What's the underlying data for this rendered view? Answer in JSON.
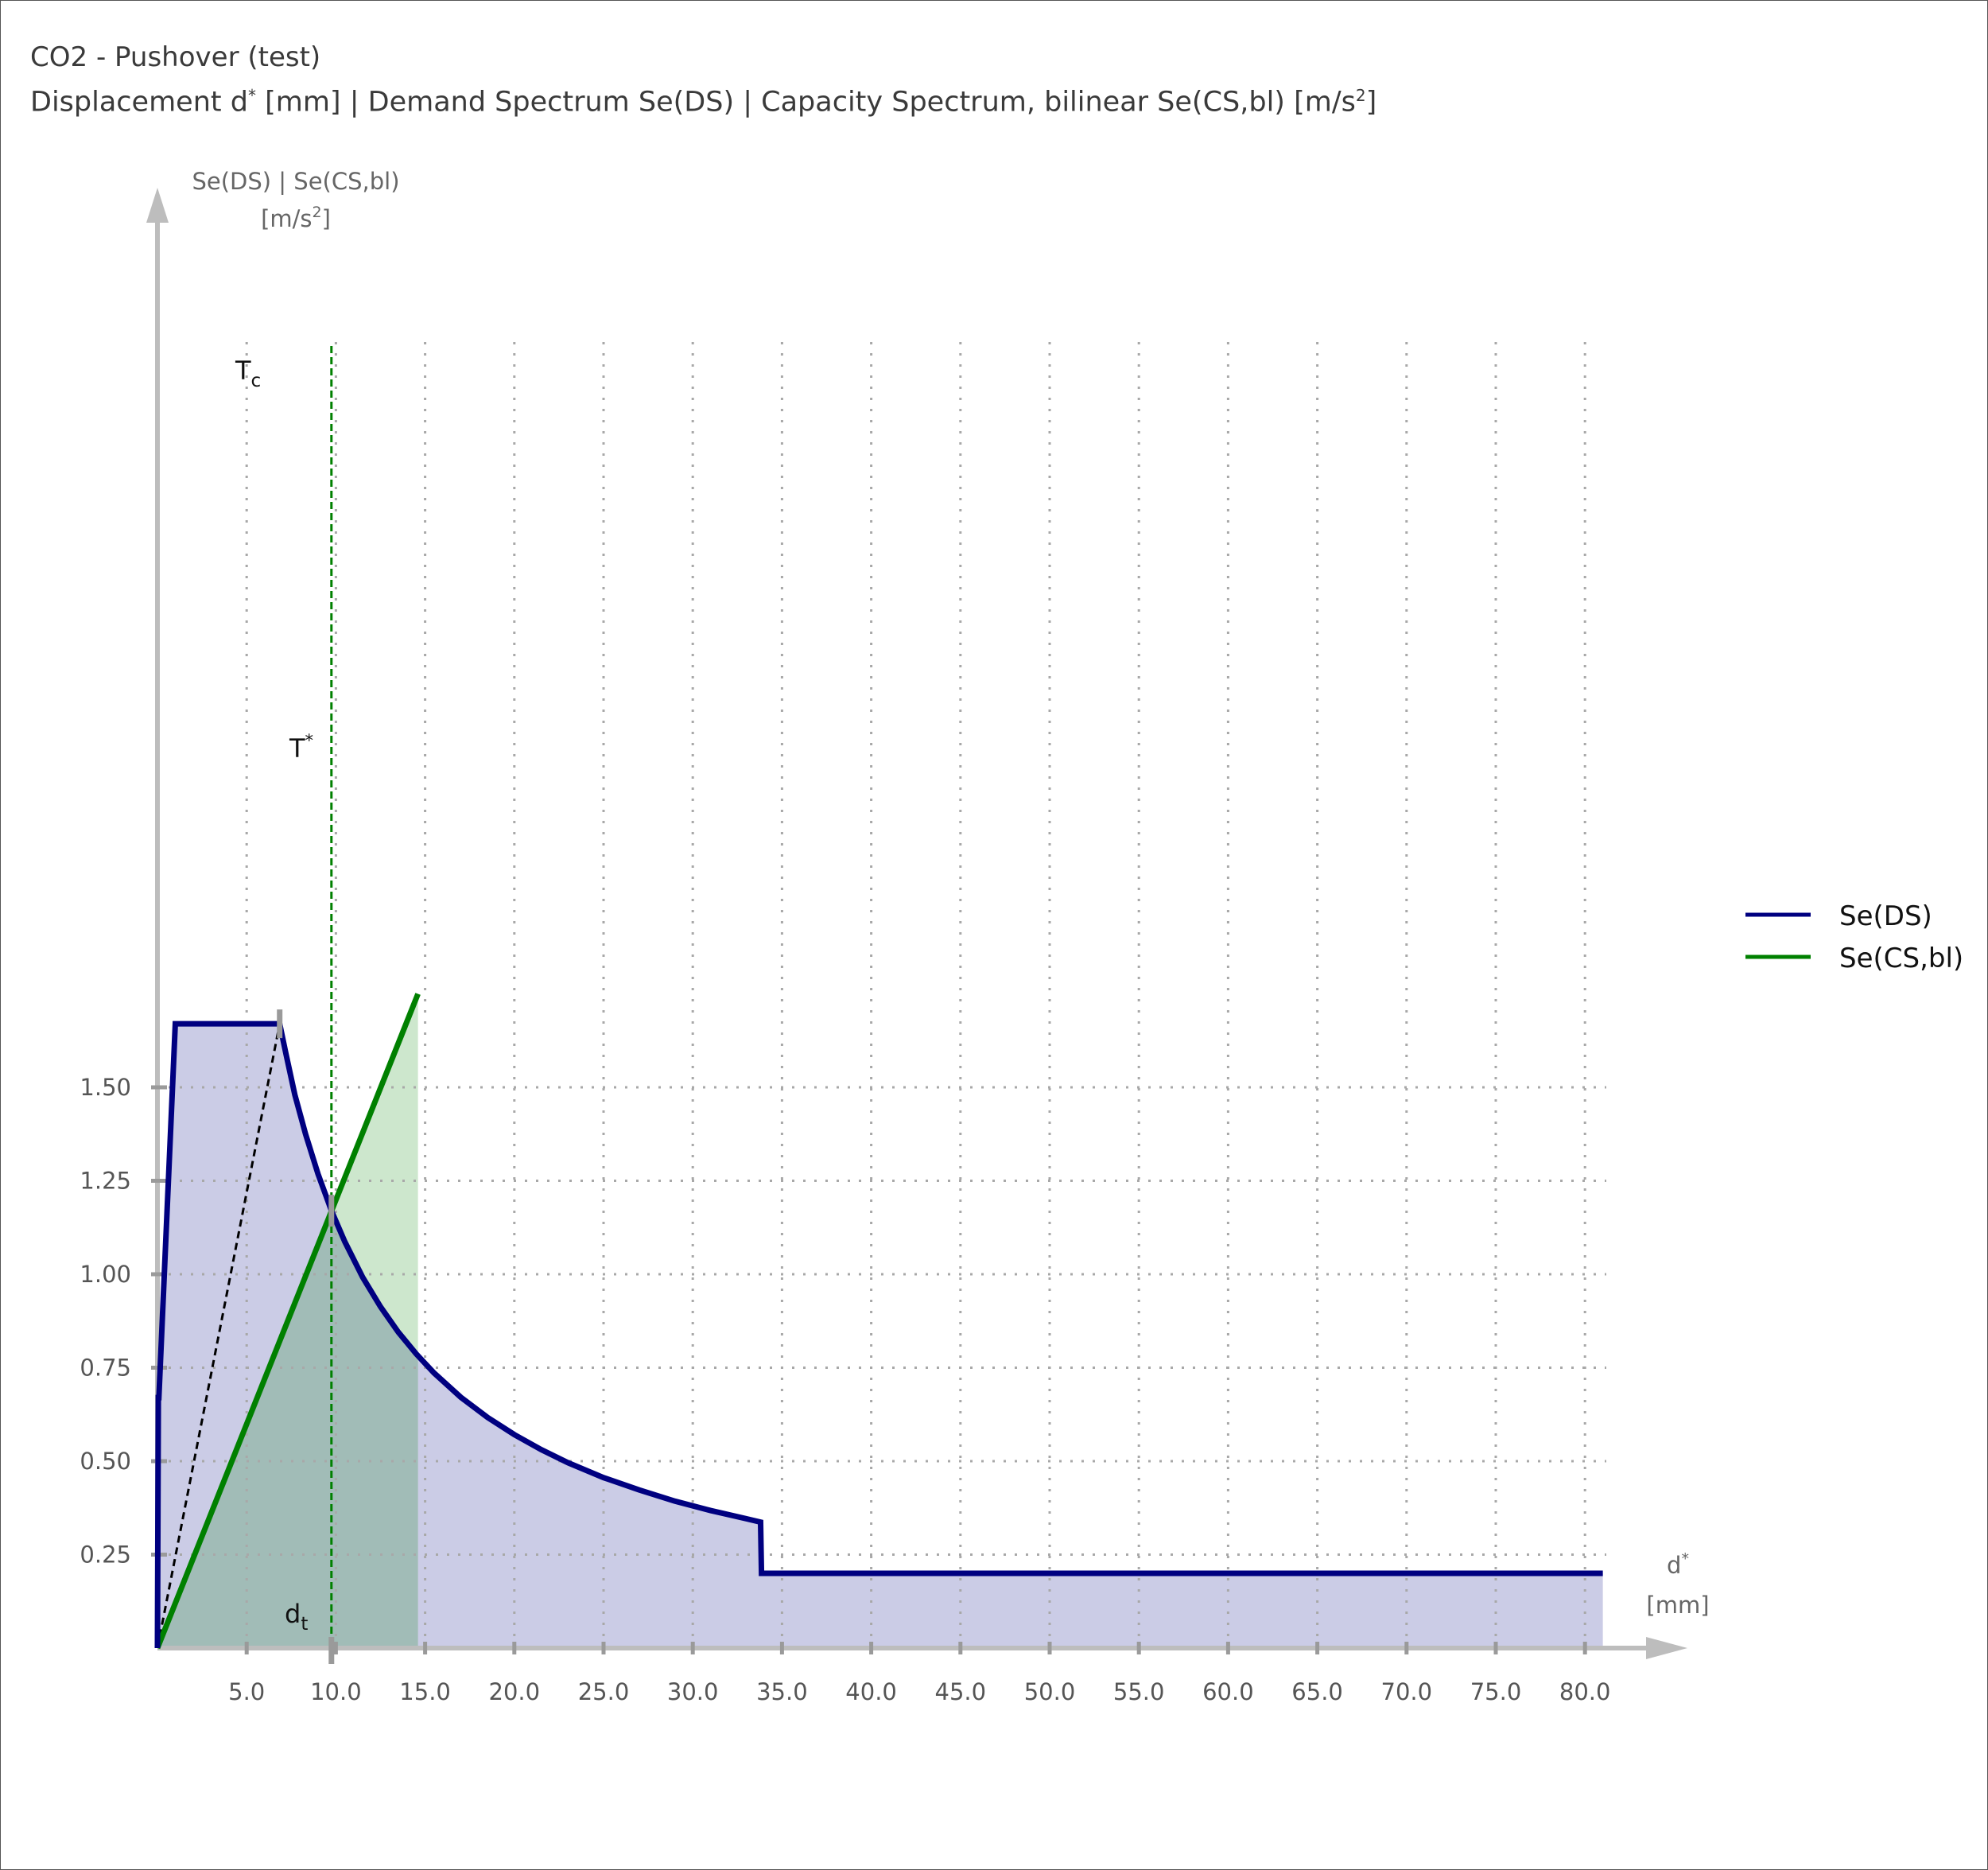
{
  "title": "CO2 - Pushover (test)",
  "subtitle": {
    "p1": "Displacement d",
    "sup1": "*",
    "p2": " [mm] | Demand Spectrum Se(DS) | Capacity Spectrum, bilinear Se(CS,bl) [m/s",
    "sup2": "2",
    "p3": "]"
  },
  "chart_data": {
    "type": "area",
    "title": "CO2 - Pushover (test)",
    "xlabel": {
      "line1": "d",
      "line1_sup": "*",
      "line2": "[mm]"
    },
    "ylabel": {
      "line1": "Se(DS) | Se(CS,bl)",
      "line2a": "[m/s",
      "line2_sup": "2",
      "line2b": "]"
    },
    "xlim": [
      0,
      86
    ],
    "ylim": [
      0,
      1.95
    ],
    "x_ticks": [
      5.0,
      10.0,
      15.0,
      20.0,
      25.0,
      30.0,
      35.0,
      40.0,
      45.0,
      50.0,
      55.0,
      60.0,
      65.0,
      70.0,
      75.0,
      80.0
    ],
    "x_tick_labels": [
      "5.0",
      "10.0",
      "15.0",
      "20.0",
      "25.0",
      "30.0",
      "35.0",
      "40.0",
      "45.0",
      "50.0",
      "55.0",
      "60.0",
      "65.0",
      "70.0",
      "75.0",
      "80.0"
    ],
    "y_ticks": [
      0.25,
      0.5,
      0.75,
      1.0,
      1.25,
      1.5
    ],
    "y_tick_labels": [
      "0.25",
      "0.50",
      "0.75",
      "1.00",
      "1.25",
      "1.50"
    ],
    "grid": true,
    "legend_position": "right",
    "series": [
      {
        "name": "Se(DS)",
        "color": "#000080",
        "fill": "#cbcce6",
        "x": [
          0,
          0.05,
          0.08,
          1.0,
          6.85,
          7.2,
          7.7,
          8.3,
          9.0,
          9.75,
          10.5,
          11.5,
          12.5,
          13.5,
          14.5,
          15.5,
          17.0,
          18.5,
          20.0,
          21.5,
          23.0,
          25.0,
          27.0,
          29.0,
          31.0,
          33.0,
          33.8,
          33.85,
          81.0
        ],
        "y": [
          0,
          0.67,
          0.67,
          1.67,
          1.67,
          1.59,
          1.48,
          1.375,
          1.268,
          1.17,
          1.087,
          0.992,
          0.913,
          0.845,
          0.787,
          0.736,
          0.671,
          0.617,
          0.571,
          0.531,
          0.496,
          0.456,
          0.423,
          0.393,
          0.368,
          0.346,
          0.337,
          0.2,
          0.2
        ]
      },
      {
        "name": "Se(CS,bl)",
        "color": "#008000",
        "fill": "#c8e4c8",
        "x": [
          0,
          14.6
        ],
        "y": [
          0,
          1.75
        ]
      }
    ],
    "annotations": {
      "Tc": {
        "label": "T",
        "sub": "c",
        "x": 6.85,
        "y": 1.67
      },
      "T_star": {
        "label": "T",
        "sup": "*",
        "x": 9.75,
        "y": 1.17
      },
      "dt": {
        "label": "d",
        "sub": "t",
        "x": 9.75
      },
      "Tc_line_color": "#000000",
      "dt_line_color": "#008000"
    }
  }
}
